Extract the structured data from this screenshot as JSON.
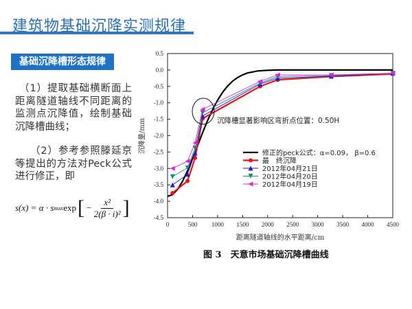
{
  "slide": {
    "title": "建筑物基础沉降实测规律",
    "section_label": "基础沉降槽形态规律",
    "para1": "（1）提取基础横断面上距离隧道轴线不同距离的监测点沉降值，绘制基础沉降槽曲线；",
    "para2": "（2）参考参照滕延京等提出的方法对Peck公式进行修正，即",
    "formula": "s(x) = α · s_max exp[ − x² / 2(β · i)² ]",
    "formula_lhs": "s(x) = α · s",
    "formula_sub": "max",
    "formula_exp": " exp",
    "formula_num": "x²",
    "formula_den": "2(β · i)²",
    "caption": "图 3　天意市场基础沉降槽曲线"
  },
  "chart_data": {
    "type": "line",
    "title": "图 3　天意市场基础沉降槽曲线",
    "xlabel": "距离隧道轴线的水平距离/cm",
    "ylabel": "沉降量/mm",
    "xlim": [
      0,
      4500
    ],
    "ylim": [
      -4.5,
      0.5
    ],
    "xticks": [
      "0",
      "500",
      "1000",
      "1500",
      "2000",
      "2500",
      "3000",
      "3500",
      "4000",
      "4500"
    ],
    "yticks": [
      "0.5",
      "0.0",
      "-0.5",
      "-1.0",
      "-1.5",
      "-2.0",
      "-2.5",
      "-3.0",
      "-3.5",
      "-4.0",
      "-4.5"
    ],
    "annotation": "沉降槽显著影响区弯折点位置：0.50H",
    "legend_position": "center-right",
    "series": [
      {
        "name": "修正的peck公式：α=0.09，  β=0.6",
        "color": "#000000",
        "marker": "none",
        "x": [
          0,
          100,
          200,
          300,
          400,
          500,
          600,
          700,
          800,
          900,
          1000,
          1100,
          1200,
          1300,
          1400,
          1500,
          1600,
          1700,
          1800,
          2000,
          2200,
          2500,
          3000,
          3500,
          4000,
          4500
        ],
        "y": [
          -3.85,
          -3.8,
          -3.64,
          -3.39,
          -3.07,
          -2.7,
          -2.31,
          -1.91,
          -1.54,
          -1.21,
          -0.92,
          -0.68,
          -0.49,
          -0.34,
          -0.23,
          -0.15,
          -0.09,
          -0.06,
          -0.03,
          -0.01,
          0,
          0,
          0,
          0,
          0,
          0
        ]
      },
      {
        "name": "最　终沉降",
        "color": "#e8141c",
        "marker": "circle",
        "x": [
          100,
          400,
          550,
          700,
          1850,
          2200,
          3270,
          4500
        ],
        "y": [
          -3.75,
          -3.38,
          -2.68,
          -1.48,
          -0.5,
          -0.3,
          -0.2,
          -0.12
        ]
      },
      {
        "name": "2012年04月21日",
        "color": "#1a1ad0",
        "marker": "triangle-up",
        "x": [
          100,
          400,
          550,
          700,
          1850,
          2200,
          3270,
          4500
        ],
        "y": [
          -3.5,
          -3.18,
          -2.53,
          -1.4,
          -0.43,
          -0.25,
          -0.19,
          -0.1
        ]
      },
      {
        "name": "2012年04月20日",
        "color": "#1a8a7a",
        "marker": "triangle-down",
        "x": [
          100,
          400,
          550,
          700,
          1850,
          2200,
          3270,
          4500
        ],
        "y": [
          -3.25,
          -2.98,
          -2.38,
          -1.3,
          -0.4,
          -0.2,
          -0.17,
          -0.1
        ]
      },
      {
        "name": "2012年04月19日",
        "color": "#e020e0",
        "marker": "triangle-left",
        "x": [
          100,
          400,
          550,
          700,
          1850,
          2200,
          3270,
          4500
        ],
        "y": [
          -3.0,
          -2.78,
          -2.22,
          -1.2,
          -0.35,
          -0.15,
          -0.15,
          -0.1
        ]
      }
    ]
  }
}
